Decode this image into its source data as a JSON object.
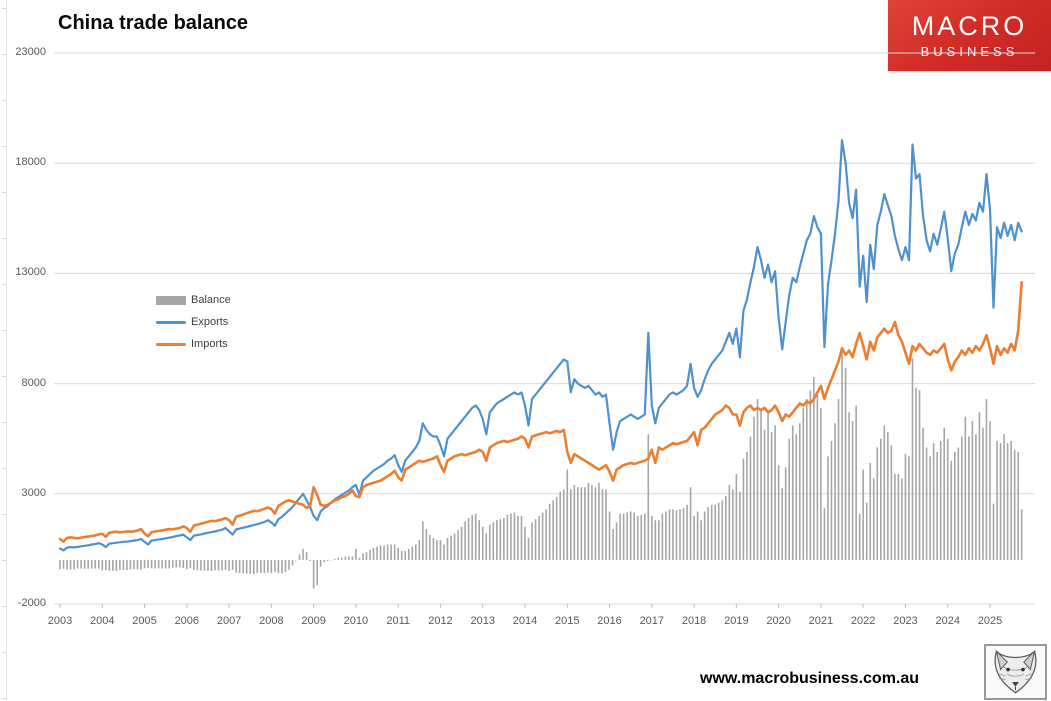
{
  "header": {
    "title": "China trade balance",
    "logo": {
      "line1": "MACRO",
      "line2": "BUSINESS",
      "bg_color": "#d02a26",
      "text_color": "#ffffff"
    }
  },
  "footer": {
    "url": "www.macrobusiness.com.au",
    "fox_logo": "fox-sketch-icon"
  },
  "chart_data": {
    "type": "combo",
    "subtypes": {
      "Balance": "bar",
      "Exports": "line",
      "Imports": "line"
    },
    "title": "China trade balance",
    "x_start": "2003-01",
    "x_end": "2025-10",
    "points": 274,
    "x_year_labels": [
      2003,
      2004,
      2005,
      2006,
      2007,
      2008,
      2009,
      2010,
      2011,
      2012,
      2013,
      2014,
      2015,
      2016,
      2017,
      2018,
      2019,
      2020,
      2021,
      2022,
      2023,
      2024,
      2025
    ],
    "y_ticks": [
      23000,
      18000,
      13000,
      8000,
      3000,
      -2000
    ],
    "ylim": [
      -2000,
      23000
    ],
    "grid": "horizontal",
    "legend_position": "inside-left",
    "legend": [
      {
        "label": "Balance",
        "color": "#a6a6a6",
        "type": "bar"
      },
      {
        "label": "Exports",
        "color": "#4f91cd",
        "type": "line"
      },
      {
        "label": "Imports",
        "color": "#ed7d31",
        "type": "line"
      }
    ],
    "balance_formula": "exports - imports",
    "exports": [
      520,
      430,
      560,
      580,
      570,
      590,
      620,
      640,
      660,
      700,
      720,
      760,
      700,
      580,
      740,
      760,
      780,
      800,
      820,
      830,
      850,
      880,
      900,
      950,
      820,
      700,
      880,
      900,
      930,
      950,
      980,
      1010,
      1040,
      1080,
      1110,
      1150,
      1030,
      900,
      1100,
      1130,
      1160,
      1200,
      1230,
      1260,
      1290,
      1330,
      1370,
      1450,
      1300,
      1150,
      1380,
      1420,
      1460,
      1500,
      1540,
      1580,
      1620,
      1670,
      1720,
      1800,
      1700,
      1550,
      1850,
      1950,
      2100,
      2250,
      2400,
      2600,
      2800,
      3000,
      2700,
      2400,
      2000,
      1800,
      2200,
      2350,
      2450,
      2600,
      2750,
      2850,
      2950,
      3050,
      3150,
      3300,
      3400,
      2950,
      3600,
      3750,
      3900,
      4050,
      4150,
      4250,
      4350,
      4500,
      4600,
      4750,
      4300,
      4000,
      4500,
      4700,
      4900,
      5100,
      5400,
      6200,
      5900,
      5700,
      5600,
      5600,
      5200,
      4700,
      5500,
      5700,
      5900,
      6100,
      6300,
      6500,
      6700,
      6900,
      7000,
      6800,
      6400,
      5700,
      6700,
      6900,
      7100,
      7200,
      7300,
      7400,
      7500,
      7600,
      7500,
      7600,
      7000,
      6100,
      7300,
      7500,
      7700,
      7900,
      8100,
      8300,
      8500,
      8700,
      8900,
      9100,
      9000,
      7600,
      8200,
      8000,
      7900,
      7800,
      7900,
      7700,
      7500,
      7600,
      7400,
      7500,
      6200,
      5000,
      5800,
      6300,
      6400,
      6500,
      6600,
      6500,
      6400,
      6500,
      6600,
      10300,
      7000,
      6200,
      6900,
      7100,
      7300,
      7500,
      7600,
      7500,
      7600,
      7700,
      7900,
      8900,
      7800,
      7400,
      7700,
      8200,
      8600,
      8900,
      9100,
      9300,
      9500,
      9900,
      10300,
      9800,
      10500,
      9200,
      11300,
      11800,
      12600,
      13300,
      14200,
      13600,
      12800,
      13400,
      12600,
      13100,
      11000,
      9550,
      10800,
      12000,
      12800,
      12600,
      13300,
      13900,
      14500,
      14800,
      15600,
      15100,
      14800,
      9650,
      12500,
      13600,
      14800,
      16300,
      19050,
      18000,
      16200,
      15500,
      16800,
      12400,
      13800,
      11700,
      14300,
      13200,
      15200,
      15800,
      16600,
      16100,
      15600,
      14700,
      14100,
      13600,
      14200,
      13600,
      18850,
      17300,
      17500,
      15600,
      14500,
      14000,
      14800,
      14300,
      15000,
      15800,
      14600,
      13100,
      13900,
      14300,
      15100,
      15800,
      15200,
      15700,
      15400,
      16200,
      15800,
      17500,
      15900,
      11450,
      15100,
      14600,
      15300,
      14700,
      15200,
      14500,
      15300,
      14900
    ],
    "imports": [
      950,
      830,
      1000,
      1020,
      1000,
      980,
      1010,
      1040,
      1060,
      1090,
      1110,
      1160,
      1180,
      1050,
      1230,
      1260,
      1280,
      1250,
      1270,
      1290,
      1280,
      1300,
      1330,
      1400,
      1200,
      1070,
      1260,
      1290,
      1310,
      1340,
      1370,
      1400,
      1390,
      1420,
      1450,
      1520,
      1450,
      1280,
      1560,
      1600,
      1640,
      1690,
      1730,
      1770,
      1760,
      1800,
      1840,
      1900,
      1800,
      1600,
      1960,
      2010,
      2060,
      2120,
      2170,
      2230,
      2210,
      2260,
      2320,
      2380,
      2300,
      2100,
      2450,
      2550,
      2650,
      2700,
      2650,
      2600,
      2550,
      2500,
      2350,
      2450,
      3300,
      2950,
      2500,
      2450,
      2500,
      2600,
      2700,
      2750,
      2850,
      2900,
      3000,
      3150,
      2900,
      2850,
      3300,
      3400,
      3450,
      3500,
      3550,
      3600,
      3700,
      3800,
      3900,
      4050,
      3750,
      3600,
      4100,
      4200,
      4300,
      4400,
      4500,
      4450,
      4500,
      4550,
      4600,
      4700,
      4300,
      4000,
      4500,
      4600,
      4700,
      4750,
      4800,
      4750,
      4800,
      4850,
      4900,
      5000,
      4900,
      4500,
      5100,
      5200,
      5300,
      5350,
      5400,
      5350,
      5400,
      5450,
      5500,
      5600,
      5500,
      5100,
      5600,
      5650,
      5700,
      5750,
      5800,
      5750,
      5800,
      5850,
      5800,
      5900,
      4900,
      4400,
      4800,
      4700,
      4600,
      4500,
      4400,
      4300,
      4200,
      4100,
      4200,
      4300,
      4000,
      3600,
      4100,
      4200,
      4300,
      4350,
      4400,
      4350,
      4400,
      4450,
      4500,
      4600,
      5000,
      4400,
      5100,
      5000,
      5100,
      5200,
      5300,
      5250,
      5300,
      5350,
      5400,
      5600,
      5800,
      5200,
      5900,
      6000,
      6200,
      6400,
      6600,
      6700,
      6800,
      7000,
      6900,
      6600,
      6600,
      6100,
      6700,
      6900,
      7000,
      6800,
      6900,
      6800,
      6900,
      6700,
      6800,
      7000,
      6700,
      6300,
      6600,
      6500,
      6700,
      6900,
      7100,
      7000,
      7200,
      7100,
      7300,
      7600,
      7900,
      7300,
      7800,
      8200,
      8600,
      9000,
      9600,
      9300,
      9500,
      9200,
      9800,
      10300,
      9700,
      9100,
      9900,
      9500,
      10100,
      10300,
      10500,
      10300,
      10400,
      10800,
      10200,
      9900,
      9400,
      8900,
      9700,
      9500,
      9800,
      9600,
      9400,
      9300,
      9500,
      9400,
      9600,
      9800,
      9100,
      8600,
      9000,
      9200,
      9500,
      9300,
      9600,
      9400,
      9700,
      9500,
      9800,
      10200,
      9600,
      8900,
      9700,
      9300,
      9600,
      9400,
      9800,
      9500,
      10400,
      12600
    ]
  }
}
